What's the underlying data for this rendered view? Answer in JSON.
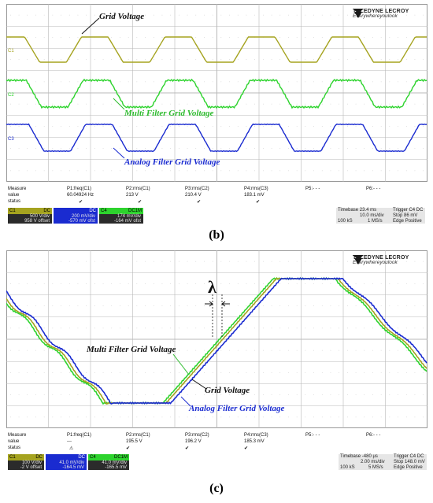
{
  "figure_b": {
    "brand": "TELEDYNE LECROY",
    "tagline": "Everywhereyoulook",
    "annotations": {
      "grid_voltage": "Grid Voltage",
      "multi_filter": "Multi Filter Grid Voltage",
      "analog_filter": "Analog Filter Grid Voltage"
    },
    "channel_markers": {
      "c1": "C1",
      "c2": "C2",
      "c3": "C3"
    },
    "measure": {
      "labels": [
        "Measure",
        "value",
        "status"
      ],
      "columns": [
        {
          "name": "P1:freq(C1)",
          "value": "60.04924 Hz",
          "status": "✔"
        },
        {
          "name": "P2:rms(C1)",
          "value": "213 V",
          "status": "✔"
        },
        {
          "name": "P3:rms(C2)",
          "value": "210.4 V",
          "status": "✔"
        },
        {
          "name": "P4:rms(C3)",
          "value": "183.1 mV",
          "status": "✔"
        },
        {
          "name": "P5:- - -",
          "value": "",
          "status": ""
        },
        {
          "name": "P6:- - -",
          "value": "",
          "status": ""
        }
      ]
    },
    "channels": [
      {
        "id": "C1",
        "tag": "DC",
        "line1": "500 V/div",
        "line2": "958 V offset",
        "color": "#9c9a1e"
      },
      {
        "id": "C2",
        "tag": "DC",
        "line1": "200 mV/div",
        "line2": "-570 mV ofst",
        "color": "#2233cc"
      },
      {
        "id": "C4",
        "tag": "DC1M",
        "line1": "174 mV/div",
        "line2": "-164 mV ofst",
        "color": "#22cc22"
      }
    ],
    "timebase": {
      "label": "Timebase",
      "value": "23.4 ms",
      "trigger": "Trigger",
      "trig_tag": "C4 DC",
      "div": "10.0 ms/div",
      "stop": "Stop",
      "stop_val": "86 mV",
      "samples": "100 kS",
      "rate": "1 MS/s",
      "edge": "Edge",
      "edge_val": "Positive"
    },
    "caption": "(b)"
  },
  "figure_c": {
    "brand": "TELEDYNE LECROY",
    "tagline": "Everywhereyoulook",
    "annotations": {
      "lambda": "λ",
      "multi_filter": "Multi Filter Grid Voltage",
      "grid_voltage": "Grid Voltage",
      "analog_filter": "Analog Filter Grid Voltage"
    },
    "measure": {
      "labels": [
        "Measure",
        "value",
        "status"
      ],
      "columns": [
        {
          "name": "P1:freq(C1)",
          "value": "---",
          "status": "⚠"
        },
        {
          "name": "P2:rms(C1)",
          "value": "195.5 V",
          "status": "✔"
        },
        {
          "name": "P3:rms(C2)",
          "value": "196.2 V",
          "status": "✔"
        },
        {
          "name": "P4:rms(C3)",
          "value": "185.3 mV",
          "status": "✔"
        },
        {
          "name": "P5:- - -",
          "value": "",
          "status": ""
        },
        {
          "name": "P6:- - -",
          "value": "",
          "status": ""
        }
      ]
    },
    "channels": [
      {
        "id": "C1",
        "tag": "DC",
        "line1": "100 V/div",
        "line2": "-2 V offset",
        "color": "#9c9a1e"
      },
      {
        "id": "C2",
        "tag": "DC",
        "line1": "41.0 mV/div",
        "line2": "-164.5 mV",
        "color": "#2233cc"
      },
      {
        "id": "C4",
        "tag": "DC1M",
        "line1": "41.0 mV/div",
        "line2": "-165.5 mV",
        "color": "#22cc22"
      }
    ],
    "timebase": {
      "label": "Timebase",
      "value": "-480 µs",
      "trigger": "Trigger",
      "trig_tag": "C4 DC",
      "div": "2.00 ms/div",
      "stop": "Stop",
      "stop_val": "148.0 mV",
      "samples": "100 kS",
      "rate": "5 MS/s",
      "edge": "Edge",
      "edge_val": "Positive"
    },
    "caption": "(c)"
  },
  "colors": {
    "yellow": "#a5a31f",
    "green": "#2dd32d",
    "blue": "#1a2bd0",
    "grid": "#b8b8b8"
  }
}
